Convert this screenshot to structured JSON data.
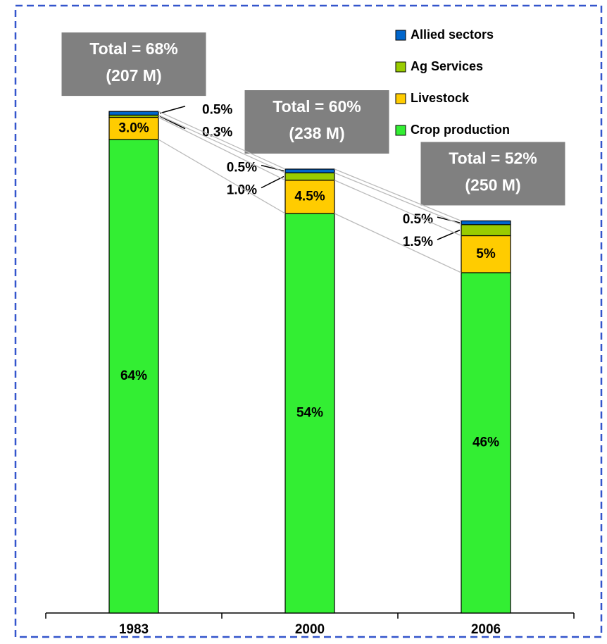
{
  "chart_data": {
    "type": "stacked_bar",
    "categories": [
      "1983",
      "2000",
      "2006"
    ],
    "series": [
      {
        "name": "Crop production",
        "color": "#33ee33",
        "values": [
          64,
          54,
          46
        ],
        "value_labels": [
          "64%",
          "54%",
          "46%"
        ]
      },
      {
        "name": "Livestock",
        "color": "#ffcc00",
        "values": [
          3.0,
          4.5,
          5
        ],
        "value_labels": [
          "3.0%",
          "4.5%",
          "5%"
        ]
      },
      {
        "name": "Ag Services",
        "color": "#99cc00",
        "values": [
          0.3,
          1.0,
          1.5
        ],
        "value_labels": [
          "0.3%",
          "1.0%",
          "1.5%"
        ]
      },
      {
        "name": "Allied sectors",
        "color": "#0066cc",
        "values": [
          0.5,
          0.5,
          0.5
        ],
        "value_labels": [
          "0.5%",
          "0.5%",
          "0.5%"
        ]
      }
    ],
    "annotations": [
      [
        "Total = 68%",
        "(207 M)"
      ],
      [
        "Total = 60%",
        "(238 M)"
      ],
      [
        "Total = 52%",
        "(250 M)"
      ]
    ]
  }
}
